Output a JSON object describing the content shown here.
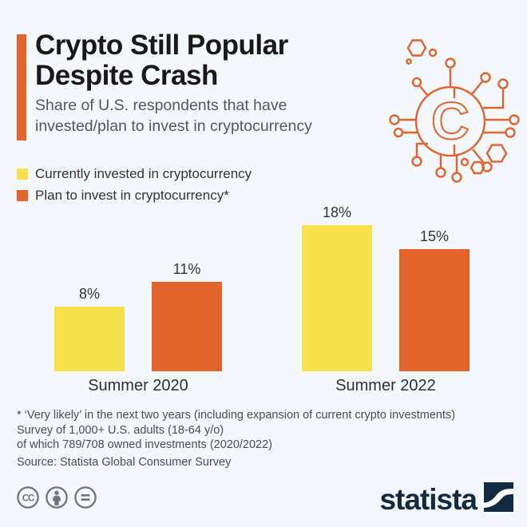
{
  "header": {
    "title_line1": "Crypto Still Popular",
    "title_line2": "Despite Crash",
    "subtitle_line1": "Share of U.S. respondents that have",
    "subtitle_line2": "invested/plan to invest in cryptocurrency"
  },
  "legend": [
    {
      "label": "Currently invested in cryptocurrency",
      "color": "#f9e04e"
    },
    {
      "label": "Plan to invest in cryptocurrency*",
      "color": "#e2632c"
    }
  ],
  "chart_data": {
    "type": "bar",
    "categories": [
      "Summer 2020",
      "Summer 2022"
    ],
    "series": [
      {
        "name": "Currently invested in cryptocurrency",
        "color": "#f9e04e",
        "values": [
          8,
          18
        ]
      },
      {
        "name": "Plan to invest in cryptocurrency*",
        "color": "#e2632c",
        "values": [
          11,
          15
        ]
      }
    ],
    "unit": "%",
    "ylim": [
      0,
      20
    ],
    "value_label_format": "{value}%",
    "grid": false,
    "legend_position": "top-left"
  },
  "footnotes": {
    "line1": "* ‘Very likely’ in the next two years (including expansion of current crypto investments)",
    "line2": "Survey of 1,000+ U.S. adults (18-64 y/o)",
    "line3": "of which 789/708 owned investments (2020/2022)",
    "source": "Source: Statista Global Consumer Survey"
  },
  "branding": {
    "logo_text": "statista",
    "license_icons": [
      "cc-icon",
      "attribution-person-icon",
      "no-derivatives-equals-icon"
    ]
  },
  "colors": {
    "background": "#f4f7fb",
    "accent_orange": "#e2632c",
    "series_yellow": "#f9e04e",
    "logo_navy": "#122a42",
    "cc_gray": "#6f757b",
    "title_text": "#191919",
    "subtitle_text": "#55575c",
    "footnote_text": "#4b4d52"
  }
}
